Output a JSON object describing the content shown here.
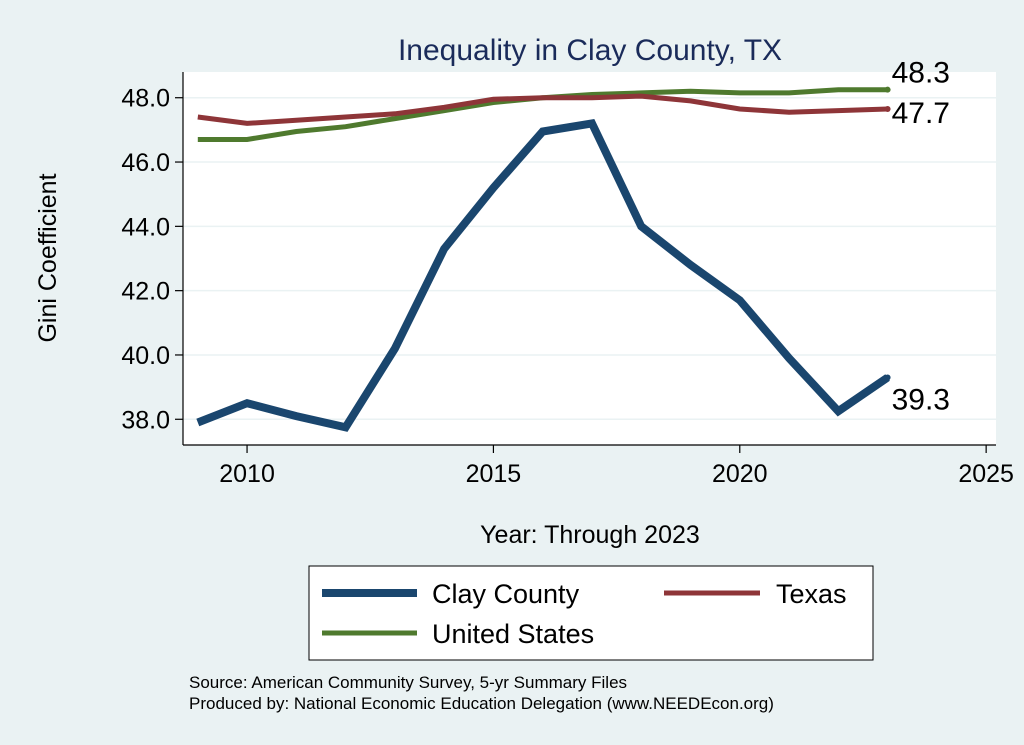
{
  "chart_data": {
    "type": "line",
    "title": "Inequality in Clay County, TX",
    "xlabel": "Year: Through 2023",
    "ylabel": "Gini Coefficient",
    "xlim": [
      2008.7,
      2025.2
    ],
    "ylim": [
      37.2,
      48.8
    ],
    "xticks": [
      2010,
      2015,
      2020,
      2025
    ],
    "xtick_labels": [
      "2010",
      "2015",
      "2020",
      "2025"
    ],
    "yticks": [
      38,
      40,
      42,
      44,
      46,
      48
    ],
    "ytick_labels": [
      "38.0",
      "40.0",
      "42.0",
      "44.0",
      "46.0",
      "48.0"
    ],
    "grid": true,
    "x": [
      2009,
      2010,
      2011,
      2012,
      2013,
      2014,
      2015,
      2016,
      2017,
      2018,
      2019,
      2020,
      2021,
      2022,
      2023
    ],
    "series": [
      {
        "name": "Clay County",
        "color": "#1a466e",
        "values": [
          37.9,
          38.5,
          38.1,
          37.75,
          40.2,
          43.3,
          45.2,
          46.95,
          47.2,
          44.0,
          42.8,
          41.7,
          39.9,
          38.25,
          39.3
        ],
        "end_label": "39.3"
      },
      {
        "name": "Texas",
        "color": "#8e3538",
        "values": [
          47.4,
          47.2,
          47.3,
          47.4,
          47.5,
          47.7,
          47.95,
          48.0,
          48.0,
          48.05,
          47.9,
          47.65,
          47.55,
          47.6,
          47.65
        ],
        "end_label": "47.7"
      },
      {
        "name": "United States",
        "color": "#4f7a2e",
        "values": [
          46.7,
          46.7,
          46.95,
          47.1,
          47.35,
          47.6,
          47.85,
          48.0,
          48.1,
          48.15,
          48.2,
          48.15,
          48.15,
          48.25,
          48.25
        ],
        "end_label": "48.3"
      }
    ],
    "legend": {
      "placement": "bottom",
      "entries": [
        "Clay County",
        "Texas",
        "United States"
      ]
    },
    "notes": [
      "Source: American Community Survey, 5-yr Summary Files",
      "Produced by: National Economic Education Delegation (www.NEEDEcon.org)"
    ]
  }
}
